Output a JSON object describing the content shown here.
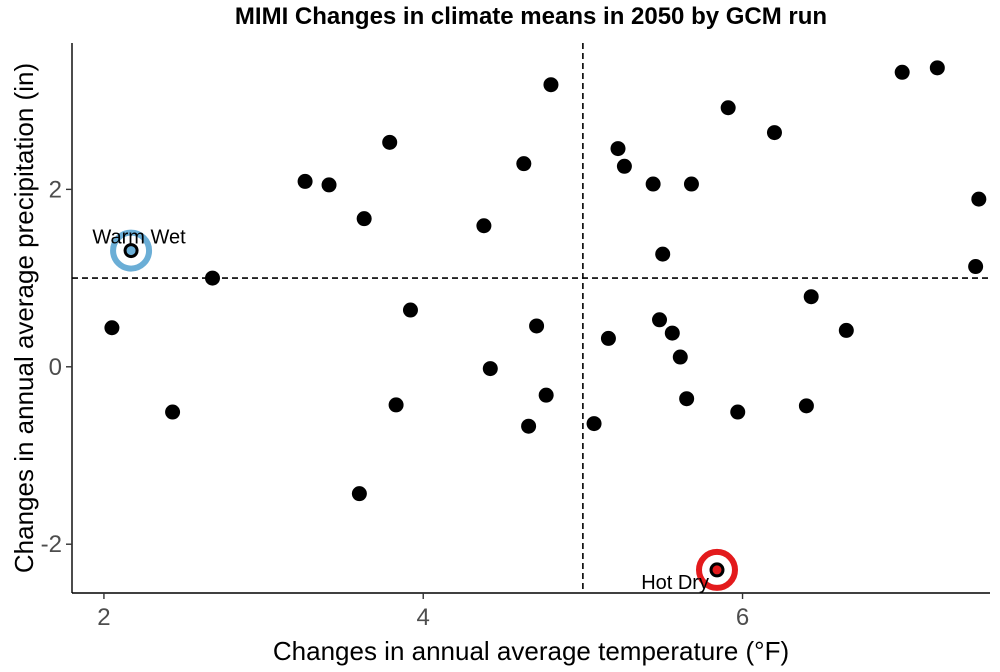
{
  "chart_data": {
    "type": "scatter",
    "title": "MIMI Changes in climate means in 2050 by GCM run",
    "xlabel": "Changes in annual average temperature (°F)",
    "ylabel": "Changes in annual average precipitation (in)",
    "xlim": [
      1.8,
      7.55
    ],
    "ylim": [
      -2.55,
      3.65
    ],
    "x_ticks": [
      2,
      4,
      6
    ],
    "y_ticks": [
      -2,
      0,
      2
    ],
    "grid": false,
    "reference_lines": {
      "x": 5.0,
      "y": 1.0,
      "style": "dashed"
    },
    "points": [
      {
        "x": 2.05,
        "y": 0.44
      },
      {
        "x": 2.17,
        "y": 1.31
      },
      {
        "x": 2.43,
        "y": -0.51
      },
      {
        "x": 2.68,
        "y": 1.0
      },
      {
        "x": 3.26,
        "y": 2.09
      },
      {
        "x": 3.41,
        "y": 2.05
      },
      {
        "x": 3.6,
        "y": -1.43
      },
      {
        "x": 3.63,
        "y": 1.67
      },
      {
        "x": 3.79,
        "y": 2.53
      },
      {
        "x": 3.83,
        "y": -0.43
      },
      {
        "x": 3.92,
        "y": 0.64
      },
      {
        "x": 4.38,
        "y": 1.59
      },
      {
        "x": 4.42,
        "y": -0.02
      },
      {
        "x": 4.63,
        "y": 2.29
      },
      {
        "x": 4.66,
        "y": -0.67
      },
      {
        "x": 4.71,
        "y": 0.46
      },
      {
        "x": 4.77,
        "y": -0.32
      },
      {
        "x": 4.8,
        "y": 3.18
      },
      {
        "x": 5.07,
        "y": -0.64
      },
      {
        "x": 5.16,
        "y": 0.32
      },
      {
        "x": 5.22,
        "y": 2.46
      },
      {
        "x": 5.26,
        "y": 2.26
      },
      {
        "x": 5.44,
        "y": 2.06
      },
      {
        "x": 5.48,
        "y": 0.53
      },
      {
        "x": 5.5,
        "y": 1.27
      },
      {
        "x": 5.56,
        "y": 0.38
      },
      {
        "x": 5.61,
        "y": 0.11
      },
      {
        "x": 5.65,
        "y": -0.36
      },
      {
        "x": 5.68,
        "y": 2.06
      },
      {
        "x": 5.84,
        "y": -2.29
      },
      {
        "x": 5.91,
        "y": 2.92
      },
      {
        "x": 5.97,
        "y": -0.51
      },
      {
        "x": 6.2,
        "y": 2.64
      },
      {
        "x": 6.4,
        "y": -0.44
      },
      {
        "x": 6.43,
        "y": 0.79
      },
      {
        "x": 6.65,
        "y": 0.41
      },
      {
        "x": 7.0,
        "y": 3.32
      },
      {
        "x": 7.22,
        "y": 3.37
      },
      {
        "x": 7.46,
        "y": 1.13
      },
      {
        "x": 7.48,
        "y": 1.89
      }
    ],
    "highlights": [
      {
        "label": "Warm Wet",
        "x": 2.17,
        "y": 1.31,
        "color": "#6baed6"
      },
      {
        "label": "Hot Dry",
        "x": 5.84,
        "y": -2.29,
        "color": "#e31a1c"
      }
    ],
    "colors": {
      "point": "#000000",
      "axis": "#000000",
      "tick_label": "#4d4d4d"
    }
  }
}
